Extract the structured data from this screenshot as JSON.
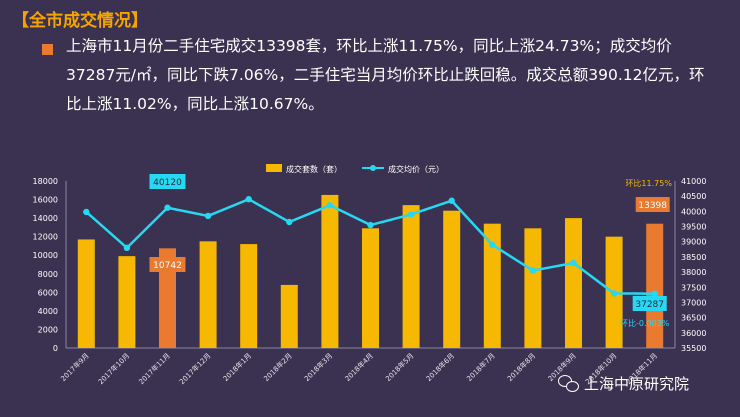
{
  "header": {
    "title": "【全市成交情况】"
  },
  "summary": {
    "text": "上海市11月份二手住宅成交13398套，环比上涨11.75%，同比上涨24.73%；成交均价37287元/㎡，同比下跌7.06%，二手住宅当月均价环比止跌回稳。成交总额390.12亿元，环比上涨11.02%，同比上涨10.67%。"
  },
  "watermark": {
    "text": "上海中原研究院",
    "icon": "wechat-icon"
  },
  "colors": {
    "bar": "#f6b800",
    "bar_highlight": "#ea7a30",
    "line": "#27d8f2",
    "background": "#3a3250"
  },
  "chart_data": {
    "type": "bar",
    "categories": [
      "2017年9月",
      "2017年10月",
      "2017年11月",
      "2017年12月",
      "2018年1月",
      "2018年2月",
      "2018年3月",
      "2018年4月",
      "2018年5月",
      "2018年6月",
      "2018年7月",
      "2018年8月",
      "2018年9月",
      "2018年10月",
      "2018年11月"
    ],
    "series": [
      {
        "name": "成交套数（套）",
        "type": "bar",
        "axis": "left",
        "values": [
          11700,
          9900,
          10742,
          11500,
          11200,
          6800,
          16500,
          12900,
          15400,
          14800,
          13400,
          12900,
          14000,
          12000,
          13398
        ],
        "highlight_indices": [
          2,
          14
        ]
      },
      {
        "name": "成交均价（元）",
        "type": "line",
        "axis": "right",
        "values": [
          39980,
          38800,
          40120,
          39850,
          40400,
          39650,
          40200,
          39550,
          39900,
          40350,
          38900,
          38050,
          38300,
          37300,
          37287
        ]
      }
    ],
    "y_left": {
      "min": 0,
      "max": 18000,
      "step": 2000
    },
    "y_right": {
      "min": 35500,
      "max": 41000,
      "step": 500
    },
    "labels": {
      "bar_nov2017": "10742",
      "line_nov2017": "40120",
      "bar_nov2018": "13398",
      "line_nov2018": "37287",
      "mom_up": "环比11.75%",
      "mom_down": "环比-0.003%"
    },
    "grid": false,
    "legend_position": "top-center"
  }
}
